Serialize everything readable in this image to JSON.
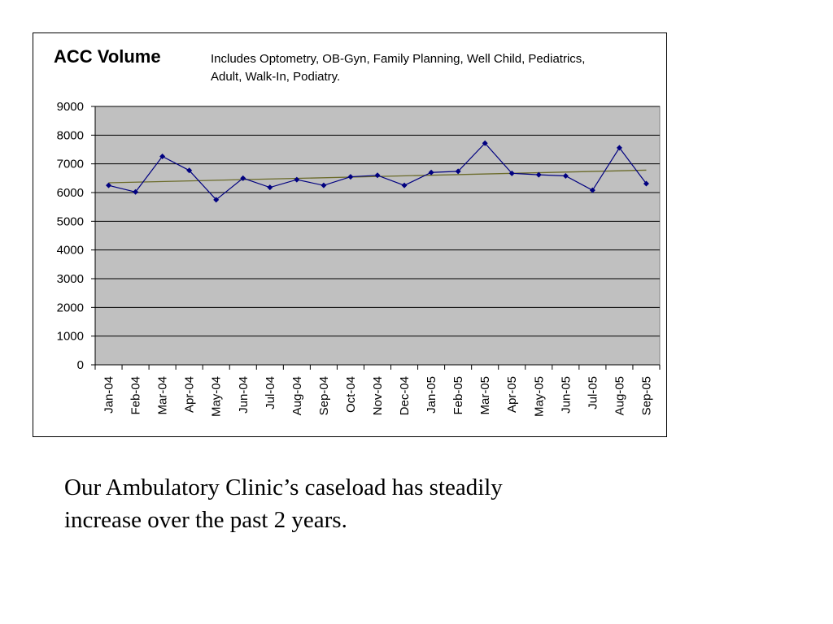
{
  "chart_data": {
    "type": "line",
    "title": "ACC Volume",
    "subtitle": "Includes Optometry, OB-Gyn, Family Planning, Well Child, Pediatrics, Adult, Walk-In, Podiatry.",
    "categories": [
      "Jan-04",
      "Feb-04",
      "Mar-04",
      "Apr-04",
      "May-04",
      "Jun-04",
      "Jul-04",
      "Aug-04",
      "Sep-04",
      "Oct-04",
      "Nov-04",
      "Dec-04",
      "Jan-05",
      "Feb-05",
      "Mar-05",
      "Apr-05",
      "May-05",
      "Jun-05",
      "Jul-05",
      "Aug-05",
      "Sep-05"
    ],
    "series": [
      {
        "values": [
          6250,
          6020,
          7260,
          6770,
          5750,
          6500,
          6180,
          6450,
          6250,
          6550,
          6600,
          6250,
          6700,
          6740,
          7720,
          6670,
          6620,
          6580,
          6080,
          7560,
          6310
        ],
        "color": "#000080",
        "marker": "diamond"
      }
    ],
    "trendline": {
      "type": "linear",
      "start": 6340,
      "end": 6780,
      "color": "#6b6b2a"
    },
    "ylim": [
      0,
      9000
    ],
    "yticks": [
      0,
      1000,
      2000,
      3000,
      4000,
      5000,
      6000,
      7000,
      8000,
      9000
    ],
    "xlabel": "",
    "ylabel": "",
    "grid": true,
    "plot_background": "#c0c0c0"
  },
  "caption": "Our Ambulatory Clinic’s caseload has steadily increase over the past 2 years."
}
